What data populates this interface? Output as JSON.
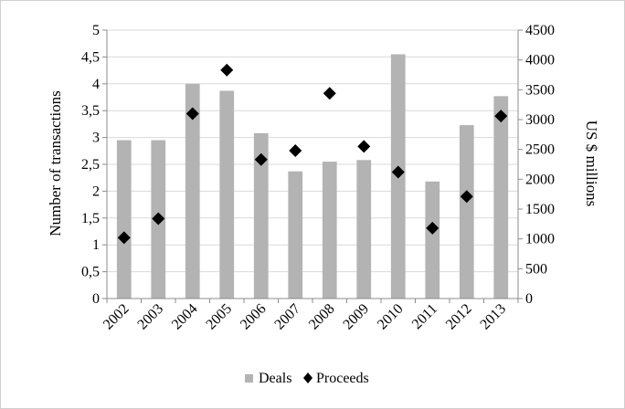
{
  "chart_data": {
    "type": "bar",
    "categories": [
      "2002",
      "2003",
      "2004",
      "2005",
      "2006",
      "2007",
      "2008",
      "2009",
      "2010",
      "2011",
      "2012",
      "2013"
    ],
    "series": [
      {
        "name": "Deals",
        "kind": "bar",
        "axis": "left",
        "color": "#b3b3b3",
        "values": [
          2.95,
          2.95,
          4.0,
          3.87,
          3.08,
          2.37,
          2.55,
          2.58,
          4.55,
          2.18,
          3.23,
          3.77
        ]
      },
      {
        "name": "Proceeds",
        "kind": "scatter",
        "axis": "right",
        "marker": "diamond",
        "color": "#000000",
        "values": [
          1020,
          1340,
          3100,
          3830,
          2330,
          2480,
          3440,
          2550,
          2120,
          1180,
          1710,
          3060
        ]
      }
    ],
    "ylabel": "Number of transactions",
    "ylim": [
      0,
      5
    ],
    "yticks": [
      "0",
      "0,5",
      "1",
      "1,5",
      "2",
      "2,5",
      "3",
      "3,5",
      "4",
      "4,5",
      "5"
    ],
    "y2label": "US $ millions",
    "y2lim": [
      0,
      4500
    ],
    "y2ticks": [
      "0",
      "500",
      "1000",
      "1500",
      "2000",
      "2500",
      "3000",
      "3500",
      "4000",
      "4500"
    ],
    "grid": true,
    "legend": "bottom"
  }
}
